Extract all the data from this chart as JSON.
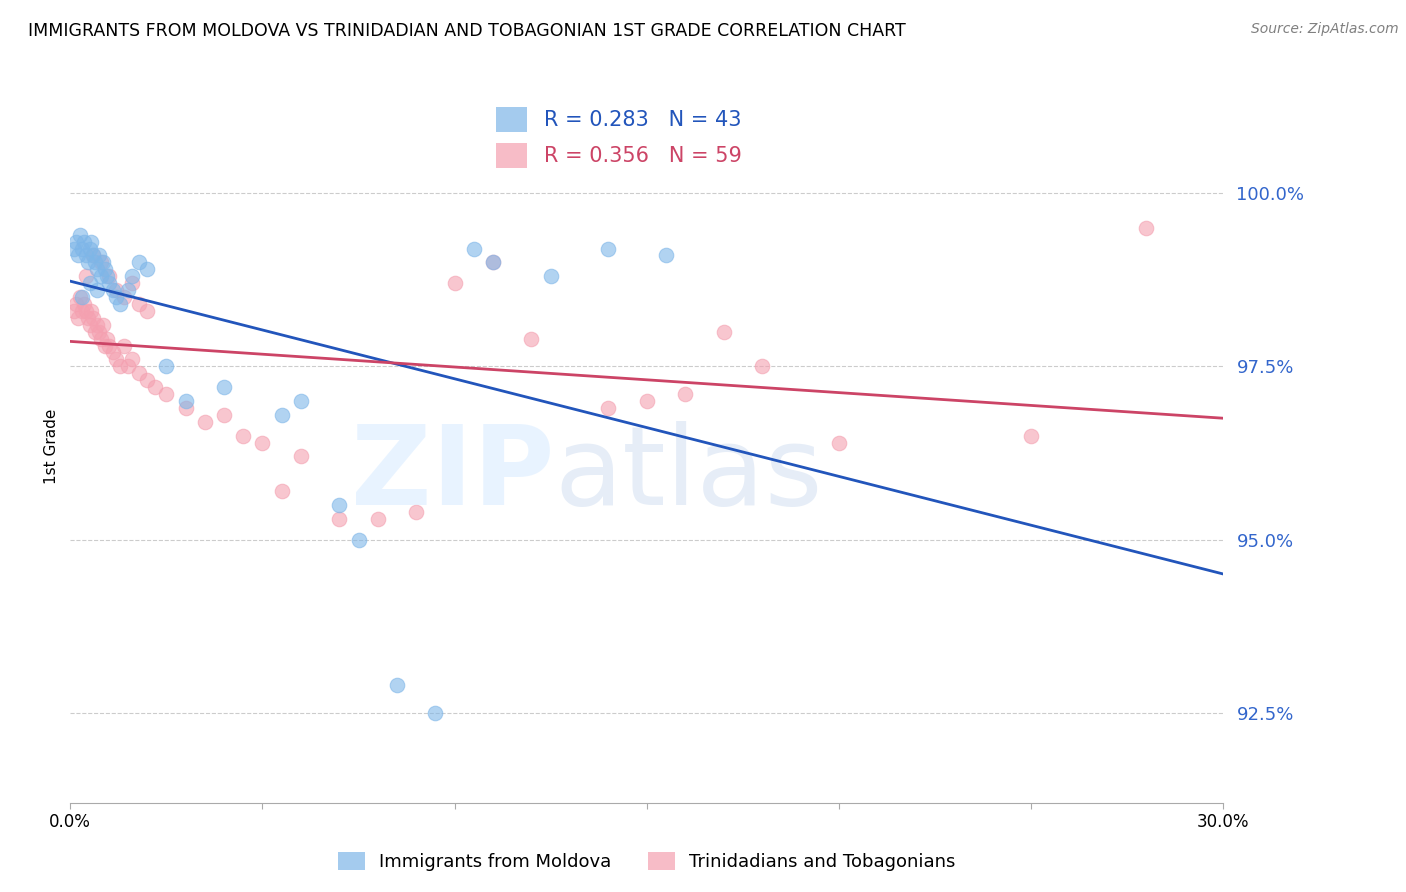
{
  "title": "IMMIGRANTS FROM MOLDOVA VS TRINIDADIAN AND TOBAGONIAN 1ST GRADE CORRELATION CHART",
  "source": "Source: ZipAtlas.com",
  "ylabel": "1st Grade",
  "yticks": [
    92.5,
    95.0,
    97.5,
    100.0
  ],
  "xlim": [
    0.0,
    30.0
  ],
  "ylim": [
    91.2,
    101.5
  ],
  "legend1_label": "R = 0.283   N = 43",
  "legend2_label": "R = 0.356   N = 59",
  "legend_bottom1": "Immigrants from Moldova",
  "legend_bottom2": "Trinidadians and Tobagonians",
  "blue_color": "#7EB6E8",
  "pink_color": "#F4A0B0",
  "blue_line_color": "#2255BB",
  "pink_line_color": "#CC4466",
  "blue_x": [
    0.1,
    0.15,
    0.2,
    0.25,
    0.3,
    0.35,
    0.4,
    0.45,
    0.5,
    0.55,
    0.6,
    0.65,
    0.7,
    0.75,
    0.8,
    0.85,
    0.9,
    0.95,
    1.0,
    1.1,
    1.2,
    1.3,
    1.5,
    1.6,
    1.8,
    2.0,
    2.5,
    3.0,
    4.0,
    5.5,
    6.0,
    7.0,
    7.5,
    8.5,
    9.5,
    10.5,
    11.0,
    12.5,
    14.0,
    15.5,
    0.3,
    0.5,
    0.7
  ],
  "blue_y": [
    99.2,
    99.3,
    99.1,
    99.4,
    99.2,
    99.3,
    99.1,
    99.0,
    99.2,
    99.3,
    99.1,
    99.0,
    98.9,
    99.1,
    98.8,
    99.0,
    98.9,
    98.8,
    98.7,
    98.6,
    98.5,
    98.4,
    98.6,
    98.8,
    99.0,
    98.9,
    97.5,
    97.0,
    97.2,
    96.8,
    97.0,
    95.5,
    95.0,
    92.9,
    92.5,
    99.2,
    99.0,
    98.8,
    99.2,
    99.1,
    98.5,
    98.7,
    98.6
  ],
  "pink_x": [
    0.1,
    0.15,
    0.2,
    0.25,
    0.3,
    0.35,
    0.4,
    0.45,
    0.5,
    0.55,
    0.6,
    0.65,
    0.7,
    0.75,
    0.8,
    0.85,
    0.9,
    0.95,
    1.0,
    1.1,
    1.2,
    1.3,
    1.4,
    1.5,
    1.6,
    1.8,
    2.0,
    2.2,
    2.5,
    3.0,
    3.5,
    4.0,
    4.5,
    5.0,
    5.5,
    6.0,
    7.0,
    8.0,
    9.0,
    10.0,
    11.0,
    12.0,
    14.0,
    15.0,
    16.0,
    17.0,
    18.0,
    20.0,
    25.0,
    28.0,
    0.4,
    0.6,
    0.8,
    1.0,
    1.2,
    1.4,
    1.6,
    1.8,
    2.0
  ],
  "pink_y": [
    98.3,
    98.4,
    98.2,
    98.5,
    98.3,
    98.4,
    98.3,
    98.2,
    98.1,
    98.3,
    98.2,
    98.0,
    98.1,
    98.0,
    97.9,
    98.1,
    97.8,
    97.9,
    97.8,
    97.7,
    97.6,
    97.5,
    97.8,
    97.5,
    97.6,
    97.4,
    97.3,
    97.2,
    97.1,
    96.9,
    96.7,
    96.8,
    96.5,
    96.4,
    95.7,
    96.2,
    95.3,
    95.3,
    95.4,
    98.7,
    99.0,
    97.9,
    96.9,
    97.0,
    97.1,
    98.0,
    97.5,
    96.4,
    96.5,
    99.5,
    98.8,
    99.1,
    99.0,
    98.8,
    98.6,
    98.5,
    98.7,
    98.4,
    98.3
  ]
}
